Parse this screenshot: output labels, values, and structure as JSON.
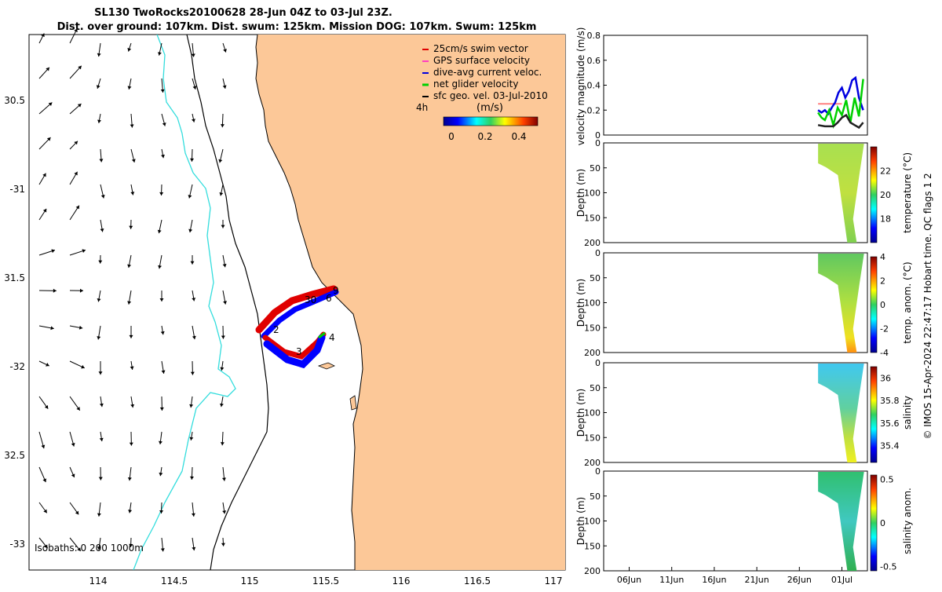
{
  "title": {
    "line1": "SL130 TwoRocks20100628 28-Jun 04Z to 03-Jul 23Z.",
    "line2": "Dist. over ground: 107km. Dist. swum: 125km. Mission DOG: 107km. Swum: 125km"
  },
  "map": {
    "lon_ticks": [
      "114",
      "114.5",
      "115",
      "115.5",
      "116",
      "116.5",
      "117"
    ],
    "lat_ticks": [
      "30.5",
      "-31",
      "31.5",
      "-32",
      "32.5",
      "-33"
    ],
    "legend": [
      {
        "label": "25cm/s swim vector",
        "color": "#e00000"
      },
      {
        "label": "GPS surface velocity",
        "color": "#ff40c0"
      },
      {
        "label": "dive-avg current veloc.",
        "color": "#0000e0"
      },
      {
        "label": "net glider velocity",
        "color": "#00d000"
      },
      {
        "label": "sfc geo. vel. 03-Jul-2010",
        "color": "#000000"
      }
    ],
    "colorbar_label": "(m/s)",
    "colorbar_ticks": [
      "0",
      "0.2",
      "0.4"
    ],
    "time_marker": "4h",
    "isobath_label": "Isobaths: 0  200  1000m",
    "track_labels": [
      "9",
      "6",
      "30",
      "2",
      "4",
      "3",
      "4"
    ],
    "colors": {
      "land": "#fcc898",
      "isobath_1000": "#33dddd",
      "coast": "#000000"
    }
  },
  "chart_data": [
    {
      "type": "line",
      "ylabel": "velocity magnitude (m/s)",
      "ylim": [
        0,
        0.8
      ],
      "y_ticks": [
        "0",
        "0.2",
        "0.4",
        "0.6",
        "0.8"
      ],
      "x_dates": [
        "06Jun",
        "11Jun",
        "16Jun",
        "21Jun",
        "26Jun",
        "01Jul"
      ],
      "series": [
        {
          "color": "#ff8080",
          "x": [
            28.2,
            29,
            30,
            31
          ],
          "values": [
            0.25,
            0.25,
            0.25,
            0.25
          ]
        },
        {
          "color": "#0000e0",
          "x": [
            28.2,
            28.6,
            29.0,
            29.4,
            29.8,
            30.2,
            30.6,
            31.0,
            31.4,
            31.8,
            32.2,
            32.6,
            33.0,
            33.5
          ],
          "values": [
            0.2,
            0.18,
            0.2,
            0.17,
            0.22,
            0.26,
            0.34,
            0.38,
            0.3,
            0.35,
            0.44,
            0.46,
            0.3,
            0.2
          ]
        },
        {
          "color": "#00d000",
          "x": [
            28.2,
            28.6,
            29.0,
            29.5,
            30.0,
            30.5,
            31.0,
            31.5,
            32.0,
            32.5,
            33.0,
            33.5
          ],
          "values": [
            0.18,
            0.14,
            0.12,
            0.2,
            0.08,
            0.22,
            0.16,
            0.28,
            0.1,
            0.3,
            0.15,
            0.45
          ]
        },
        {
          "color": "#202020",
          "x": [
            28.2,
            29,
            30,
            30.5,
            31,
            31.5,
            32,
            32.5,
            33,
            33.5
          ],
          "values": [
            0.08,
            0.07,
            0.07,
            0.1,
            0.14,
            0.16,
            0.1,
            0.08,
            0.06,
            0.1
          ]
        }
      ]
    },
    {
      "type": "heatmap",
      "ylabel": "Depth (m)",
      "colorbar_label": "temperature (°C)",
      "colorbar_ticks": [
        "22",
        "20",
        "18"
      ],
      "ylim": [
        0,
        200
      ]
    },
    {
      "type": "heatmap",
      "ylabel": "Depth (m)",
      "colorbar_label": "temp. anom. (°C)",
      "colorbar_ticks": [
        "4",
        "2",
        "0",
        "-2",
        "-4"
      ],
      "ylim": [
        0,
        200
      ]
    },
    {
      "type": "heatmap",
      "ylabel": "Depth (m)",
      "colorbar_label": "salinity",
      "colorbar_ticks": [
        "36",
        "35.8",
        "35.6",
        "35.4"
      ],
      "ylim": [
        0,
        200
      ]
    },
    {
      "type": "heatmap",
      "ylabel": "Depth (m)",
      "colorbar_label": "salinity anom.",
      "colorbar_ticks": [
        "0.5",
        "0",
        "-0.5"
      ],
      "ylim": [
        0,
        200
      ]
    }
  ],
  "depth_ticks": [
    "0",
    "50",
    "100",
    "150",
    "200"
  ],
  "footer": "© IMOS 15-Apr-2024 22:47:17 Hobart time. QC flags 1  2"
}
